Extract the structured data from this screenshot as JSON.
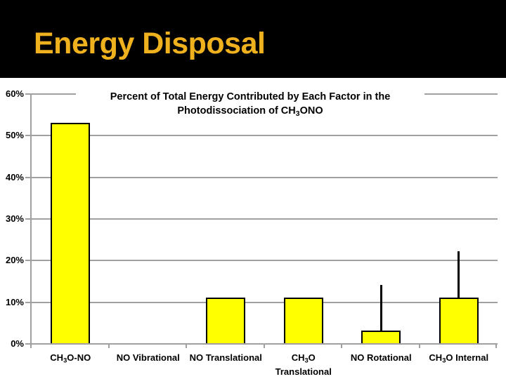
{
  "slide": {
    "header_bg": "#000000",
    "title": "Energy Disposal",
    "title_color": "#F0B11F"
  },
  "chart_data": {
    "type": "bar",
    "title_lines_plain": [
      "Percent of Total Energy Contributed by Each Factor in the",
      "Photodissociation of CH3ONO"
    ],
    "title_lines": [
      [
        {
          "text": "Percent of Total Energy Contributed by Each Factor in the"
        }
      ],
      [
        {
          "text": "Photodissociation of CH"
        },
        {
          "text": "3",
          "sub": true
        },
        {
          "text": "ONO"
        }
      ]
    ],
    "categories_plain": [
      "CH3O-NO",
      "NO Vibrational",
      "NO Translational",
      "CH3O Translational",
      "NO Rotational",
      "CH3O Internal"
    ],
    "categories": [
      [
        {
          "text": "CH"
        },
        {
          "text": "3",
          "sub": true
        },
        {
          "text": "O-NO"
        }
      ],
      [
        {
          "text": "NO Vibrational"
        }
      ],
      [
        {
          "text": "NO Translational"
        }
      ],
      [
        {
          "text": "CH"
        },
        {
          "text": "3",
          "sub": true
        },
        {
          "text": "O"
        },
        {
          "br": true
        },
        {
          "text": "Translational"
        }
      ],
      [
        {
          "text": "NO Rotational"
        }
      ],
      [
        {
          "text": "CH"
        },
        {
          "text": "3",
          "sub": true
        },
        {
          "text": "O Internal"
        }
      ]
    ],
    "values_percent": [
      53,
      0,
      11,
      11,
      3,
      11
    ],
    "error_bar_top_percent": [
      null,
      null,
      null,
      null,
      14,
      22
    ],
    "y_tick_labels": [
      "60%",
      "50%",
      "40%",
      "30%",
      "20%",
      "10%",
      "0%"
    ],
    "ylim": [
      0,
      60
    ],
    "grid": true,
    "legend": "none",
    "colors": {
      "bar_fill": "#FFFF00",
      "bar_border": "#000000",
      "gridline": "#A0A0A0",
      "error_bar": "#000000",
      "text": "#000000",
      "background": "#FFFFFF"
    }
  }
}
